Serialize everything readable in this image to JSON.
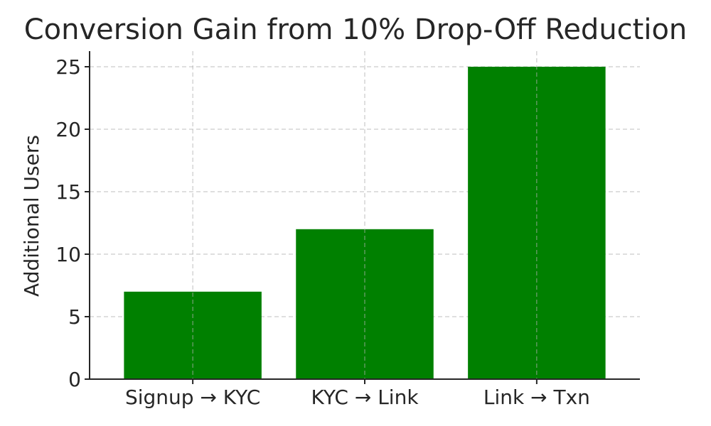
{
  "chart_data": {
    "type": "bar",
    "title": "Conversion Gain from 10% Drop-Off Reduction",
    "xlabel": "",
    "ylabel": "Additional Users",
    "categories": [
      "Signup → KYC",
      "KYC → Link",
      "Link → Txn"
    ],
    "values": [
      7,
      12,
      25
    ],
    "ylim": [
      0,
      26.25
    ],
    "yticks": [
      0,
      5,
      10,
      15,
      20,
      25
    ],
    "grid": true,
    "bar_color": "#008000"
  }
}
